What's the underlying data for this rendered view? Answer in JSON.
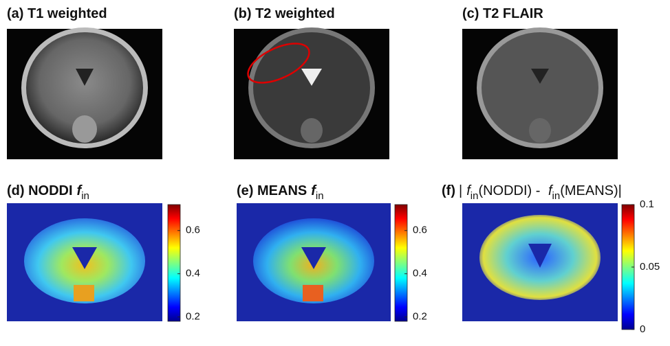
{
  "panels": [
    {
      "title": [
        {
          "text": "(a) T1 weighted",
          "style": "bold"
        }
      ]
    },
    {
      "title": [
        {
          "text": "(b) T2 weighted",
          "style": "bold"
        }
      ]
    },
    {
      "title": [
        {
          "text": "(c) T2 FLAIR",
          "style": "bold"
        }
      ]
    },
    {
      "title": [
        {
          "text": "(d) NODDI",
          "style": "bold"
        },
        {
          "text": "f",
          "style": "bold-italic"
        },
        {
          "text": "in",
          "style": "sub"
        }
      ],
      "colorbar": {
        "lim": [
          0.18,
          0.72
        ],
        "ticks": [
          0.2,
          0.4,
          0.6
        ]
      }
    },
    {
      "title": [
        {
          "text": "(e) MEANS",
          "style": "bold"
        },
        {
          "text": "f",
          "style": "bold-italic"
        },
        {
          "text": "in",
          "style": "sub"
        }
      ],
      "colorbar": {
        "lim": [
          0.18,
          0.72
        ],
        "ticks": [
          0.2,
          0.4,
          0.6
        ]
      }
    },
    {
      "title": [
        {
          "text": "(f)",
          "style": "bold"
        },
        {
          "text": "|",
          "style": "plain"
        },
        {
          "text": "f",
          "style": "italic"
        },
        {
          "text": "in",
          "style": "sub"
        },
        {
          "text": "(NODDI) - ",
          "style": "plain"
        },
        {
          "text": "f",
          "style": "italic"
        },
        {
          "text": "in",
          "style": "sub"
        },
        {
          "text": "(MEANS)|",
          "style": "plain"
        }
      ],
      "colorbar": {
        "lim": [
          0,
          0.1
        ],
        "ticks": [
          0,
          0.05,
          0.1
        ]
      }
    }
  ]
}
